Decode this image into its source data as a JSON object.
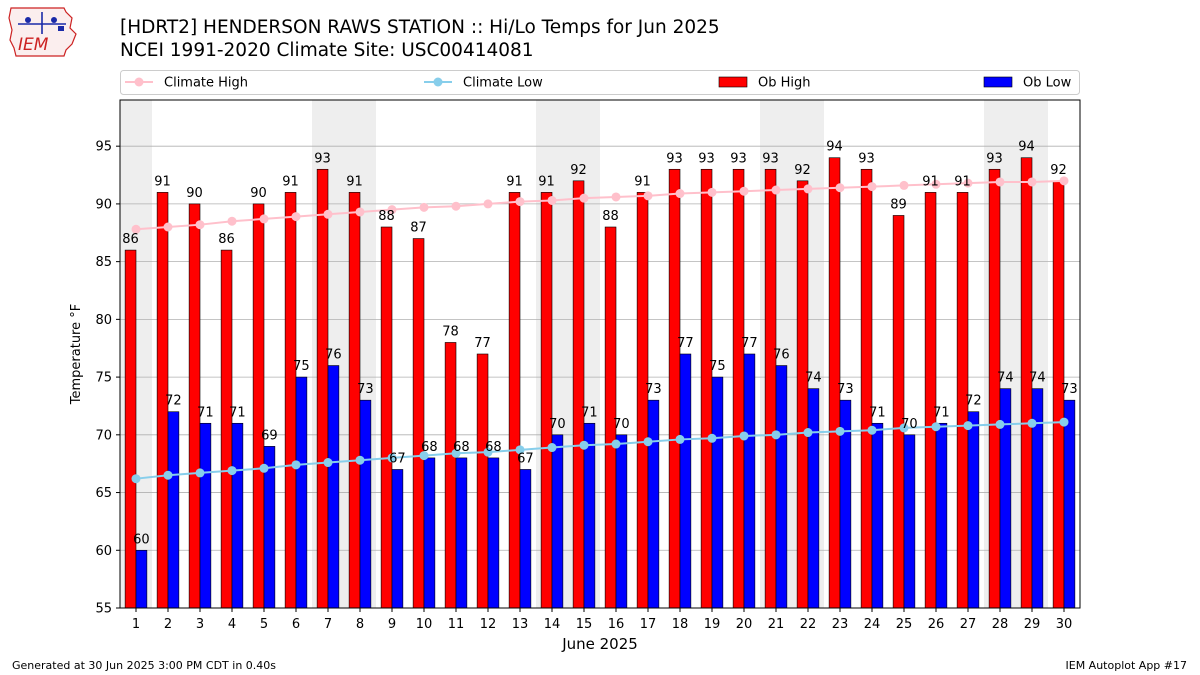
{
  "header": {
    "title": "[HDRT2] HENDERSON RAWS STATION :: Hi/Lo Temps for Jun 2025",
    "subtitle": "NCEI 1991-2020 Climate Site: USC00414081",
    "logo_text": "IEM"
  },
  "footer": {
    "generated": "Generated at 30 Jun 2025 3:00 PM CDT in 0.40s",
    "app": "IEM Autoplot App #17"
  },
  "colors": {
    "ob_high": "#ff0000",
    "ob_low": "#0000ff",
    "climate_high": "#ffc0cb",
    "climate_low": "#87ceeb",
    "weekend_shade": "#eeeeee",
    "grid": "#b0b0b0",
    "logo": "#cc2222"
  },
  "chart_data": {
    "type": "bar",
    "xlabel": "June 2025",
    "ylabel": "Temperature °F",
    "ylim": [
      55,
      99
    ],
    "yticks": [
      55,
      60,
      65,
      70,
      75,
      80,
      85,
      90,
      95
    ],
    "grid": "horizontal",
    "legend_placement": "top, above plot",
    "categories": [
      1,
      2,
      3,
      4,
      5,
      6,
      7,
      8,
      9,
      10,
      11,
      12,
      13,
      14,
      15,
      16,
      17,
      18,
      19,
      20,
      21,
      22,
      23,
      24,
      25,
      26,
      27,
      28,
      29,
      30
    ],
    "shaded_days": [
      1,
      7,
      8,
      14,
      15,
      21,
      22,
      28,
      29
    ],
    "series": [
      {
        "name": "Climate High",
        "kind": "line",
        "values": [
          87.8,
          88.0,
          88.2,
          88.5,
          88.7,
          88.9,
          89.1,
          89.3,
          89.5,
          89.7,
          89.8,
          90.0,
          90.2,
          90.3,
          90.5,
          90.6,
          90.7,
          90.9,
          91.0,
          91.1,
          91.2,
          91.3,
          91.4,
          91.5,
          91.6,
          91.7,
          91.8,
          91.9,
          91.9,
          92.0
        ]
      },
      {
        "name": "Climate Low",
        "kind": "line",
        "values": [
          66.2,
          66.5,
          66.7,
          66.9,
          67.1,
          67.4,
          67.6,
          67.8,
          68.0,
          68.2,
          68.4,
          68.5,
          68.7,
          68.9,
          69.1,
          69.2,
          69.4,
          69.6,
          69.7,
          69.9,
          70.0,
          70.2,
          70.3,
          70.4,
          70.6,
          70.7,
          70.8,
          70.9,
          71.0,
          71.1
        ]
      },
      {
        "name": "Ob High",
        "kind": "bar",
        "values": [
          86,
          91,
          90,
          86,
          90,
          91,
          93,
          91,
          88,
          87,
          78,
          77,
          91,
          91,
          92,
          88,
          91,
          93,
          93,
          93,
          93,
          92,
          94,
          93,
          89,
          91,
          91,
          93,
          94,
          92
        ]
      },
      {
        "name": "Ob Low",
        "kind": "bar",
        "values": [
          60,
          72,
          71,
          71,
          69,
          75,
          76,
          73,
          67,
          68,
          68,
          68,
          67,
          70,
          71,
          70,
          73,
          77,
          75,
          77,
          76,
          74,
          73,
          71,
          70,
          71,
          72,
          74,
          74,
          73
        ]
      }
    ]
  }
}
